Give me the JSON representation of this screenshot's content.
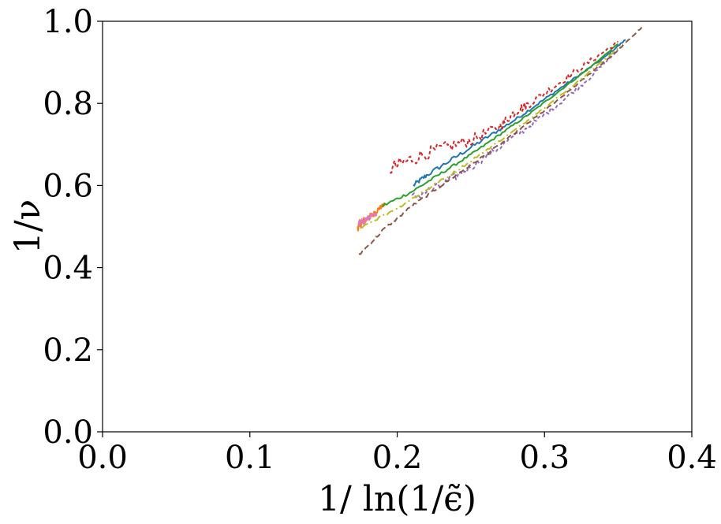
{
  "chart_data": {
    "type": "line",
    "title": "",
    "xlabel": "1/ ln(1/ϵ̃)",
    "ylabel": "1/ν",
    "xlim": [
      0.0,
      0.4
    ],
    "ylim": [
      0.0,
      1.0
    ],
    "xticks": [
      "0.0",
      "0.1",
      "0.2",
      "0.3",
      "0.4"
    ],
    "yticks": [
      "0.0",
      "0.2",
      "0.4",
      "0.6",
      "0.8",
      "1.0"
    ],
    "grid": false,
    "legend": "none",
    "series": [
      {
        "color": "#1f77b4",
        "dash": "solid",
        "noise": 0.006,
        "x": [
          0.211,
          0.22,
          0.24,
          0.26,
          0.28,
          0.3,
          0.32,
          0.34,
          0.355
        ],
        "y": [
          0.6,
          0.625,
          0.67,
          0.715,
          0.76,
          0.81,
          0.86,
          0.91,
          0.955
        ]
      },
      {
        "color": "#ff7f0e",
        "dash": "solid",
        "noise": 0.012,
        "x": [
          0.173,
          0.176,
          0.18,
          0.184,
          0.188,
          0.192
        ],
        "y": [
          0.5,
          0.51,
          0.52,
          0.53,
          0.545,
          0.555
        ]
      },
      {
        "color": "#2ca02c",
        "dash": "solid",
        "noise": 0.004,
        "x": [
          0.19,
          0.21,
          0.23,
          0.25,
          0.27,
          0.29,
          0.31,
          0.33,
          0.35
        ],
        "y": [
          0.55,
          0.585,
          0.63,
          0.675,
          0.725,
          0.775,
          0.83,
          0.885,
          0.945
        ]
      },
      {
        "color": "#d62728",
        "dash": "4,3",
        "noise": 0.018,
        "x": [
          0.195,
          0.21,
          0.23,
          0.25,
          0.27,
          0.28,
          0.29,
          0.31,
          0.33,
          0.35
        ],
        "y": [
          0.64,
          0.665,
          0.69,
          0.71,
          0.745,
          0.78,
          0.8,
          0.85,
          0.9,
          0.95
        ]
      },
      {
        "color": "#9467bd",
        "dash": "4,3",
        "noise": 0.012,
        "x": [
          0.21,
          0.23,
          0.25,
          0.27,
          0.29,
          0.31,
          0.33,
          0.35
        ],
        "y": [
          0.57,
          0.6,
          0.645,
          0.695,
          0.745,
          0.8,
          0.86,
          0.93
        ]
      },
      {
        "color": "#8c564b",
        "dash": "7,4",
        "noise": 0.004,
        "x": [
          0.174,
          0.19,
          0.21,
          0.23,
          0.25,
          0.27,
          0.29,
          0.31,
          0.33,
          0.35,
          0.366
        ],
        "y": [
          0.43,
          0.49,
          0.55,
          0.6,
          0.65,
          0.7,
          0.755,
          0.81,
          0.87,
          0.93,
          0.985
        ]
      },
      {
        "color": "#e377c2",
        "dash": "solid",
        "noise": 0.01,
        "x": [
          0.174,
          0.178,
          0.182,
          0.186
        ],
        "y": [
          0.505,
          0.515,
          0.525,
          0.53
        ]
      },
      {
        "color": "#bcbd22",
        "dash": "10,4,2,4",
        "noise": 0.004,
        "x": [
          0.176,
          0.2,
          0.22,
          0.24,
          0.26,
          0.28,
          0.3,
          0.32,
          0.34,
          0.352
        ],
        "y": [
          0.5,
          0.545,
          0.59,
          0.635,
          0.685,
          0.735,
          0.79,
          0.845,
          0.905,
          0.94
        ]
      }
    ]
  }
}
